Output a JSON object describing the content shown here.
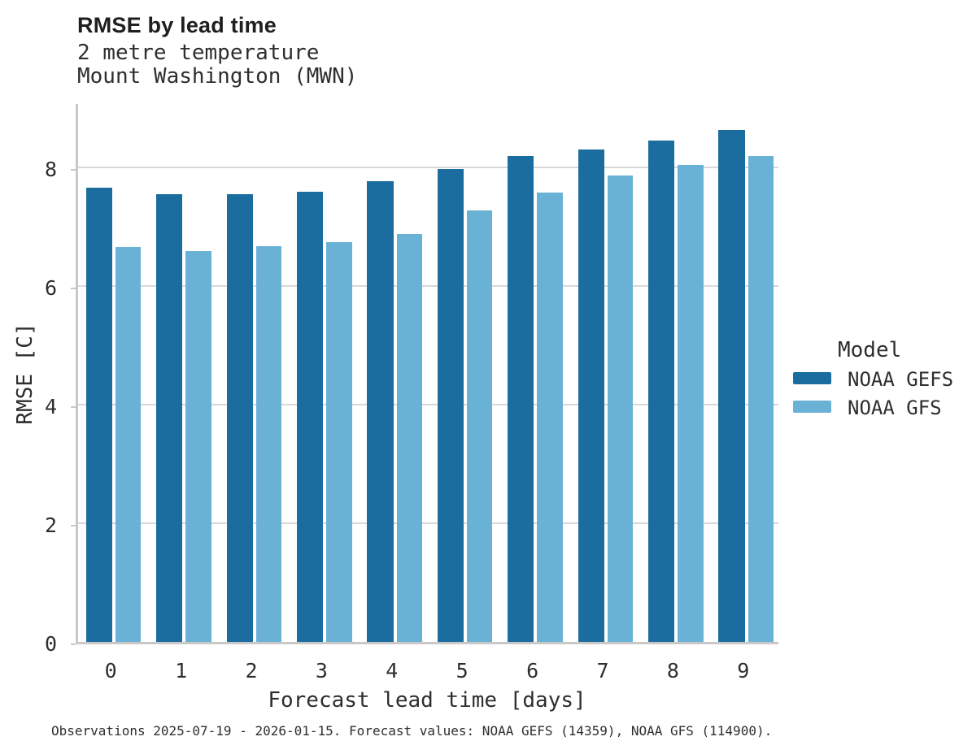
{
  "header": {
    "title": "RMSE by lead time",
    "subtitle": "2 metre temperature\nMount Washington (MWN)"
  },
  "chart_data": {
    "type": "bar",
    "title": "RMSE by lead time",
    "subtitle_lines": [
      "2 metre temperature",
      "Mount Washington (MWN)"
    ],
    "xlabel": "Forecast lead time [days]",
    "ylabel": "RMSE [C]",
    "categories": [
      "0",
      "1",
      "2",
      "3",
      "4",
      "5",
      "6",
      "7",
      "8",
      "9"
    ],
    "series": [
      {
        "name": "NOAA GEFS",
        "color": "#1a6d9e",
        "values": [
          7.65,
          7.54,
          7.54,
          7.58,
          7.76,
          7.97,
          8.19,
          8.3,
          8.45,
          8.63
        ]
      },
      {
        "name": "NOAA GFS",
        "color": "#6ab1d6",
        "values": [
          6.65,
          6.58,
          6.66,
          6.74,
          6.87,
          7.27,
          7.57,
          7.86,
          8.03,
          8.19
        ]
      }
    ],
    "yticks": [
      0,
      2,
      4,
      6,
      8
    ],
    "ylim": [
      0,
      9.1
    ],
    "grid": true,
    "legend_title": "Model",
    "legend_position": "right"
  },
  "legend": {
    "title": "Model",
    "items": [
      {
        "label": "NOAA GEFS",
        "color": "#1a6d9e"
      },
      {
        "label": "NOAA GFS",
        "color": "#6ab1d6"
      }
    ]
  },
  "colors": {
    "grid": "#d8d8d8",
    "spine": "#c8c8c8",
    "text": "#2e2e2e"
  },
  "footer": {
    "caption": "Observations 2025-07-19 - 2026-01-15. Forecast values: NOAA GEFS (14359), NOAA GFS (114900)."
  }
}
